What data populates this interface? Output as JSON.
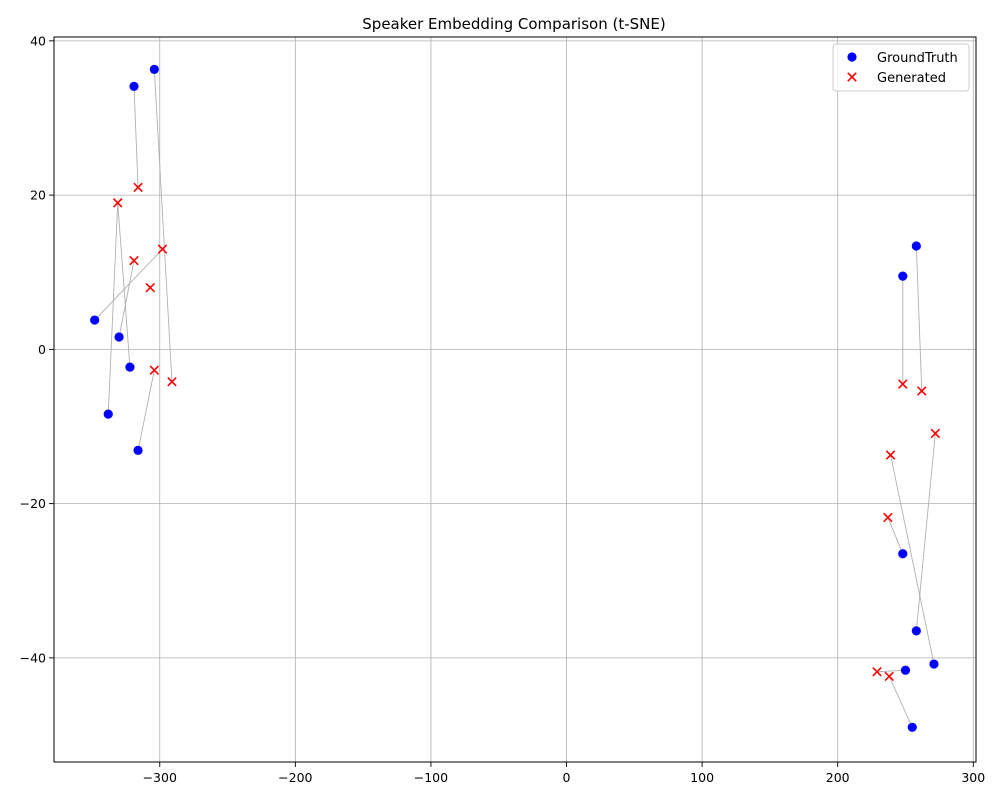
{
  "chart_data": {
    "type": "scatter",
    "title": "Speaker Embedding Comparison (t-SNE)",
    "xlabel": "",
    "ylabel": "",
    "xlim": [
      -378,
      302
    ],
    "ylim": [
      -53.5,
      40.5
    ],
    "xticks": [
      -300,
      -200,
      -100,
      0,
      100,
      200,
      300
    ],
    "yticks": [
      -40,
      -20,
      0,
      20,
      40
    ],
    "xtick_labels": [
      "−300",
      "−200",
      "−100",
      "0",
      "100",
      "200",
      "300"
    ],
    "ytick_labels": [
      "−40",
      "−20",
      "0",
      "20",
      "40"
    ],
    "grid": true,
    "legend_position": "top-right",
    "series": [
      {
        "name": "GroundTruth",
        "marker": "circle",
        "color": "#0000ff",
        "points": [
          [
            -304,
            36.3
          ],
          [
            -319,
            34.1
          ],
          [
            -348,
            3.8
          ],
          [
            -330,
            1.6
          ],
          [
            -322,
            -2.3
          ],
          [
            -338,
            -8.4
          ],
          [
            -316,
            -13.1
          ],
          [
            258,
            13.4
          ],
          [
            248,
            9.5
          ],
          [
            248,
            -26.5
          ],
          [
            258,
            -36.5
          ],
          [
            271,
            -40.8
          ],
          [
            250,
            -41.6
          ],
          [
            255,
            -49
          ]
        ]
      },
      {
        "name": "Generated",
        "marker": "x",
        "color": "#ff0000",
        "points": [
          [
            -316,
            21
          ],
          [
            -331,
            19
          ],
          [
            -298,
            13
          ],
          [
            -319,
            11.5
          ],
          [
            -307,
            8
          ],
          [
            -304,
            -2.7
          ],
          [
            -291,
            -4.2
          ],
          [
            248,
            -4.5
          ],
          [
            262,
            -5.4
          ],
          [
            272,
            -10.9
          ],
          [
            239,
            -13.7
          ],
          [
            237,
            -21.8
          ],
          [
            229,
            -41.8
          ],
          [
            238,
            -42.4
          ]
        ]
      }
    ],
    "pairs": [
      [
        0,
        6
      ],
      [
        1,
        0
      ],
      [
        2,
        2
      ],
      [
        3,
        3
      ],
      [
        4,
        1
      ],
      [
        5,
        1
      ],
      [
        6,
        5
      ],
      [
        7,
        8
      ],
      [
        8,
        7
      ],
      [
        9,
        11
      ],
      [
        10,
        9
      ],
      [
        11,
        10
      ],
      [
        12,
        12
      ],
      [
        13,
        13
      ]
    ],
    "pair_line_color": "#b0b0b0"
  }
}
